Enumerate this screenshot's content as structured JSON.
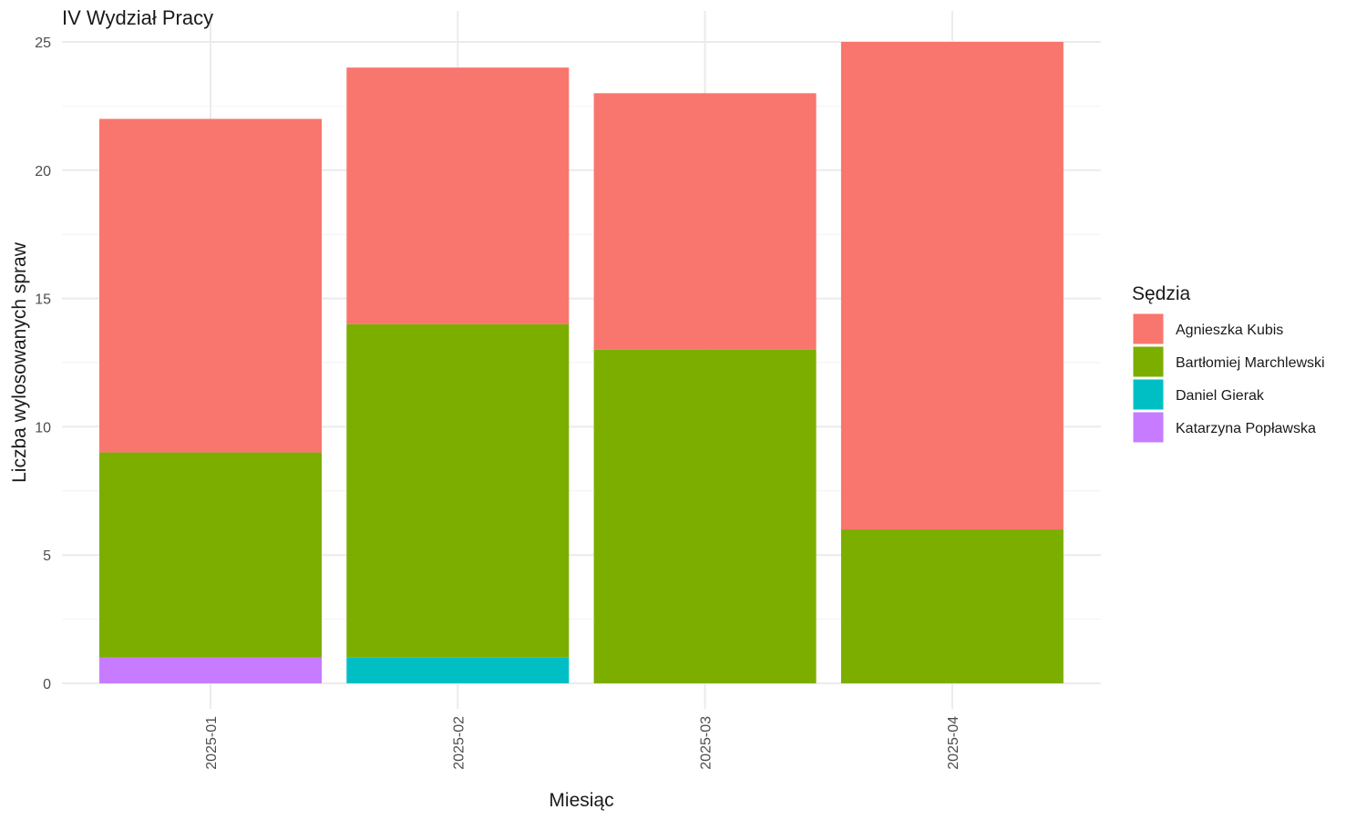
{
  "chart_data": {
    "type": "bar",
    "stacked": true,
    "title": "IV Wydział Pracy",
    "xlabel": "Miesiąc",
    "ylabel": "Liczba wylosowanych spraw",
    "ylim": [
      0,
      25
    ],
    "yticks": [
      0,
      5,
      10,
      15,
      20,
      25
    ],
    "grid": true,
    "legend_title": "Sędzia",
    "legend_position": "right",
    "categories": [
      "2025-01",
      "2025-02",
      "2025-03",
      "2025-04"
    ],
    "series": [
      {
        "name": "Katarzyna Popławska",
        "color": "#C77CFF",
        "values": [
          1,
          0,
          0,
          0
        ]
      },
      {
        "name": "Daniel Gierak",
        "color": "#00BFC4",
        "values": [
          0,
          1,
          0,
          0
        ]
      },
      {
        "name": "Bartłomiej Marchlewski",
        "color": "#7CAE00",
        "values": [
          8,
          13,
          13,
          6
        ]
      },
      {
        "name": "Agnieszka Kubis",
        "color": "#F8766D",
        "values": [
          13,
          10,
          10,
          19
        ]
      }
    ],
    "legend_order": [
      "Agnieszka Kubis",
      "Bartłomiej Marchlewski",
      "Daniel Gierak",
      "Katarzyna Popławska"
    ]
  }
}
